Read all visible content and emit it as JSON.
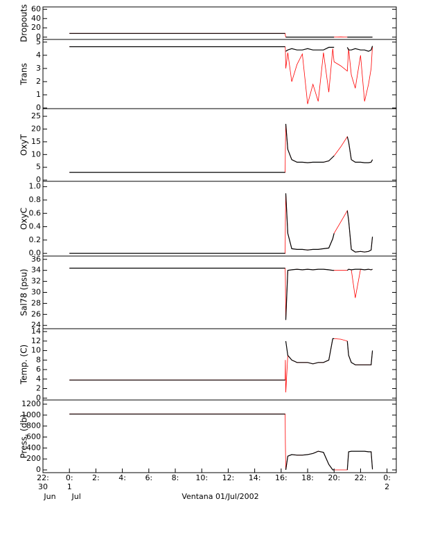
{
  "chart_data": [
    {
      "type": "line",
      "ylabel": "Dropouts",
      "xlim": [
        -2,
        24.7
      ],
      "ylim": [
        -5,
        65
      ],
      "yticks": [
        0,
        20,
        40,
        60
      ],
      "x": [
        0,
        16.3,
        16.32,
        16.35,
        16.5,
        16.8,
        17.2,
        17.6,
        18.0,
        18.4,
        18.8,
        19.2,
        19.6,
        19.9,
        20.0,
        20.5,
        21.0,
        21.1,
        21.3,
        21.6,
        22.0,
        22.3,
        22.6,
        22.8,
        22.9
      ],
      "series": [
        {
          "color": "#000000",
          "values": [
            8,
            8,
            null,
            0,
            0,
            0,
            0,
            0,
            0,
            0,
            0,
            0,
            0,
            0,
            0,
            null,
            0,
            0,
            0,
            0,
            0,
            0,
            0,
            0,
            0
          ]
        },
        {
          "color": "#ff0000",
          "values": [
            8,
            8,
            4,
            0,
            0,
            0,
            0,
            0,
            0,
            0,
            0,
            0,
            0,
            0,
            0,
            0.5,
            0,
            0,
            0,
            0,
            0,
            0,
            0,
            0,
            0
          ]
        }
      ]
    },
    {
      "type": "line",
      "ylabel": "Trans",
      "xlim": [
        -2,
        24.7
      ],
      "ylim": [
        -0.05,
        5.2
      ],
      "yticks": [
        0,
        1,
        2,
        3,
        4,
        5
      ],
      "x": [
        0,
        16.3,
        16.32,
        16.35,
        16.5,
        16.8,
        17.2,
        17.6,
        18.0,
        18.4,
        18.8,
        19.2,
        19.6,
        19.9,
        20.0,
        20.5,
        21.0,
        21.1,
        21.3,
        21.6,
        22.0,
        22.3,
        22.6,
        22.8,
        22.9
      ],
      "series": [
        {
          "color": "#000000",
          "values": [
            4.65,
            4.65,
            null,
            4.3,
            4.4,
            4.5,
            4.4,
            4.4,
            4.5,
            4.4,
            4.4,
            4.4,
            4.6,
            4.6,
            4.6,
            null,
            4.6,
            4.4,
            4.4,
            4.5,
            4.4,
            4.4,
            4.3,
            4.4,
            4.7
          ]
        },
        {
          "color": "#ff0000",
          "values": [
            4.65,
            4.65,
            4.5,
            3.0,
            4.2,
            2.0,
            3.3,
            4.1,
            0.3,
            1.8,
            0.5,
            4.2,
            1.2,
            4.5,
            3.5,
            3.2,
            2.8,
            4.5,
            2.5,
            1.5,
            4.0,
            0.5,
            1.8,
            3.0,
            4.7
          ]
        }
      ]
    },
    {
      "type": "line",
      "ylabel": "OxyT",
      "xlim": [
        -2,
        24.7
      ],
      "ylim": [
        -0.5,
        28
      ],
      "yticks": [
        0,
        5,
        10,
        15,
        20,
        25
      ],
      "x": [
        0,
        16.3,
        16.32,
        16.35,
        16.5,
        16.8,
        17.2,
        17.6,
        18.0,
        18.4,
        18.8,
        19.2,
        19.6,
        19.9,
        20.0,
        20.5,
        21.0,
        21.1,
        21.3,
        21.6,
        22.0,
        22.3,
        22.6,
        22.8,
        22.9
      ],
      "series": [
        {
          "color": "#000000",
          "values": [
            3,
            3,
            null,
            22,
            12,
            8,
            7,
            7,
            6.8,
            7,
            7,
            7,
            7.5,
            9,
            9.5,
            null,
            17,
            15,
            8,
            7,
            7,
            6.8,
            6.8,
            7,
            8
          ]
        },
        {
          "color": "#ff0000",
          "values": [
            3,
            3,
            12,
            22,
            12,
            8,
            7,
            7,
            6.8,
            7,
            7,
            7,
            7.5,
            9,
            9.5,
            13,
            17,
            15,
            8,
            7,
            7,
            6.8,
            6.8,
            7,
            8
          ]
        }
      ]
    },
    {
      "type": "line",
      "ylabel": "OxyC",
      "xlim": [
        -2,
        24.7
      ],
      "ylim": [
        -0.04,
        1.08
      ],
      "yticks": [
        {
          "value": 0,
          "label": "0.0"
        },
        {
          "value": 0.2,
          "label": "0.2"
        },
        {
          "value": 0.4,
          "label": "0.4"
        },
        {
          "value": 0.6,
          "label": "0.6"
        },
        {
          "value": 0.8,
          "label": "0.8"
        },
        {
          "value": 1,
          "label": "1.0"
        }
      ],
      "x": [
        0,
        16.3,
        16.32,
        16.35,
        16.5,
        16.8,
        17.2,
        17.6,
        18.0,
        18.4,
        18.8,
        19.2,
        19.6,
        19.9,
        20.0,
        20.5,
        21.0,
        21.1,
        21.3,
        21.6,
        22.0,
        22.3,
        22.6,
        22.8,
        22.9
      ],
      "series": [
        {
          "color": "#000000",
          "values": [
            0,
            0,
            null,
            0.9,
            0.3,
            0.07,
            0.06,
            0.06,
            0.05,
            0.06,
            0.06,
            0.07,
            0.08,
            0.22,
            0.3,
            null,
            0.64,
            0.5,
            0.06,
            0.02,
            0.03,
            0.02,
            0.03,
            0.05,
            0.25
          ]
        },
        {
          "color": "#ff0000",
          "values": [
            0,
            0,
            0.45,
            0.9,
            0.3,
            0.07,
            0.06,
            0.06,
            0.05,
            0.06,
            0.06,
            0.07,
            0.08,
            0.22,
            0.3,
            0.47,
            0.64,
            0.5,
            0.06,
            0.02,
            0.03,
            0.02,
            0.03,
            0.05,
            0.25
          ]
        }
      ]
    },
    {
      "type": "line",
      "ylabel": "Sal78 (psu)",
      "xlim": [
        -2,
        24.7
      ],
      "ylim": [
        23.4,
        36.6
      ],
      "yticks": [
        24,
        26,
        28,
        30,
        32,
        34,
        36
      ],
      "x": [
        0,
        16.3,
        16.32,
        16.35,
        16.5,
        16.8,
        17.2,
        17.6,
        18.0,
        18.4,
        18.8,
        19.2,
        19.6,
        19.9,
        20.0,
        20.5,
        21.0,
        21.1,
        21.3,
        21.6,
        22.0,
        22.3,
        22.6,
        22.8,
        22.9
      ],
      "series": [
        {
          "color": "#000000",
          "values": [
            34.4,
            34.4,
            null,
            25,
            34.0,
            34.1,
            34.2,
            34.1,
            34.2,
            34.1,
            34.2,
            34.2,
            34.1,
            34.0,
            34.0,
            null,
            34.0,
            34.2,
            34.1,
            34.2,
            34.2,
            34.1,
            34.2,
            34.1,
            34.2
          ]
        },
        {
          "color": "#ff0000",
          "values": [
            34.4,
            34.4,
            33,
            25,
            34.0,
            34.1,
            34.2,
            34.1,
            34.2,
            34.1,
            34.2,
            34.2,
            34.1,
            34.0,
            34.0,
            34.0,
            34.0,
            34.2,
            34.1,
            29,
            34.2,
            34.1,
            34.2,
            34.1,
            34.2
          ]
        }
      ]
    },
    {
      "type": "line",
      "ylabel": "Temp. (C)",
      "xlim": [
        -2,
        24.7
      ],
      "ylim": [
        -0.4,
        14.6
      ],
      "yticks": [
        0,
        2,
        4,
        6,
        8,
        10,
        12,
        14
      ],
      "x": [
        0,
        16.3,
        16.32,
        16.35,
        16.5,
        16.8,
        17.2,
        17.6,
        18.0,
        18.4,
        18.8,
        19.2,
        19.6,
        19.9,
        20.0,
        20.5,
        21.0,
        21.1,
        21.3,
        21.6,
        22.0,
        22.3,
        22.6,
        22.8,
        22.9
      ],
      "series": [
        {
          "color": "#000000",
          "values": [
            3.8,
            3.8,
            null,
            12,
            9,
            8,
            7.5,
            7.5,
            7.5,
            7.2,
            7.5,
            7.5,
            8,
            12.5,
            12.5,
            null,
            12,
            9,
            7.5,
            7,
            7,
            7,
            7,
            7,
            10
          ]
        },
        {
          "color": "#ff0000",
          "values": [
            3.8,
            3.8,
            8,
            1.2,
            9,
            8,
            7.5,
            7.5,
            7.5,
            7.2,
            7.5,
            7.5,
            8,
            12.5,
            12.5,
            12.4,
            12,
            9,
            7.5,
            7,
            7,
            7,
            7,
            7,
            10
          ]
        }
      ]
    },
    {
      "type": "line",
      "ylabel": "Press. (db)",
      "xlim": [
        -2,
        24.7
      ],
      "ylim": [
        -50,
        1276
      ],
      "yticks": [
        0,
        200,
        400,
        600,
        800,
        1000,
        1200
      ],
      "x": [
        0,
        16.3,
        16.32,
        16.35,
        16.5,
        16.8,
        17.2,
        17.6,
        18.0,
        18.4,
        18.8,
        19.2,
        19.6,
        19.9,
        20.0,
        20.5,
        21.0,
        21.1,
        21.3,
        21.6,
        22.0,
        22.3,
        22.6,
        22.8,
        22.9
      ],
      "series": [
        {
          "color": "#000000",
          "values": [
            1020,
            1020,
            null,
            0,
            250,
            280,
            270,
            270,
            280,
            300,
            340,
            320,
            100,
            0,
            0,
            null,
            0,
            330,
            340,
            340,
            340,
            340,
            330,
            330,
            10
          ]
        },
        {
          "color": "#ff0000",
          "values": [
            1020,
            1020,
            500,
            0,
            250,
            280,
            270,
            270,
            280,
            300,
            340,
            320,
            100,
            0,
            0,
            0,
            0,
            330,
            340,
            340,
            340,
            340,
            330,
            330,
            10
          ]
        }
      ],
      "xticks": [
        {
          "value": -2,
          "label": "22:"
        },
        {
          "value": 0,
          "label": "0:"
        },
        {
          "value": 2,
          "label": "2:"
        },
        {
          "value": 4,
          "label": "4:"
        },
        {
          "value": 6,
          "label": "6:"
        },
        {
          "value": 8,
          "label": "8:"
        },
        {
          "value": 10,
          "label": "10:"
        },
        {
          "value": 12,
          "label": "12:"
        },
        {
          "value": 14,
          "label": "14:"
        },
        {
          "value": 16,
          "label": "16:"
        },
        {
          "value": 18,
          "label": "18:"
        },
        {
          "value": 20,
          "label": "20:"
        },
        {
          "value": 22,
          "label": "22:"
        },
        {
          "value": 24,
          "label": "0:"
        }
      ],
      "day_labels": [
        {
          "value": -2,
          "label": "30"
        },
        {
          "value": 0,
          "label": "1"
        },
        {
          "value": 24,
          "label": "2"
        }
      ],
      "month_labels": [
        {
          "value": -2,
          "label": "Jun"
        },
        {
          "value": 0,
          "label": "Jul"
        }
      ],
      "xlabel": "Ventana 01/Jul/2002"
    }
  ]
}
